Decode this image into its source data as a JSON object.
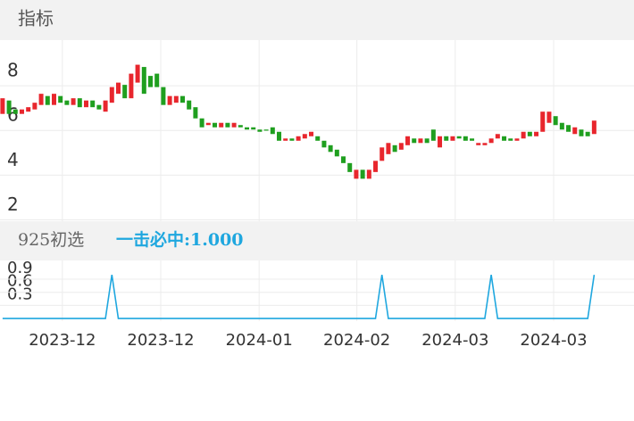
{
  "header": {
    "title": "指标"
  },
  "chart_data": [
    {
      "type": "candlestick",
      "open": [
        6.1,
        6.7,
        6.3,
        6.1,
        6.2,
        6.3,
        6.5,
        6.9,
        6.5,
        6.9,
        6.7,
        6.5,
        6.8,
        6.4,
        6.7,
        6.5,
        6.2,
        6.6,
        7.0,
        7.4,
        6.8,
        7.5,
        8.2,
        7.8,
        7.9,
        7.3,
        6.5,
        6.6,
        6.9,
        6.7,
        6.4,
        5.9,
        5.6,
        5.7,
        5.5,
        5.7,
        5.5,
        5.6,
        5.5,
        5.5,
        5.4,
        5.4,
        5.5,
        5.3,
        4.9,
        5.0,
        4.9,
        5.0,
        5.1,
        5.1,
        4.9,
        4.7,
        4.5,
        4.2,
        3.9,
        3.2,
        3.6,
        3.2,
        3.5,
        4.0,
        4.3,
        4.7,
        4.5,
        4.7,
        5.0,
        4.8,
        5.0,
        5.4,
        4.6,
        5.1,
        4.9,
        5.1,
        5.1,
        5.0,
        4.7,
        4.7,
        4.8,
        5.0,
        5.1,
        5.0,
        4.9,
        5.0,
        5.3,
        5.1,
        5.3,
        5.7,
        6.0,
        5.7,
        5.6,
        5.2,
        5.4,
        5.3,
        5.2
      ],
      "close": [
        6.8,
        6.1,
        6.1,
        6.3,
        6.4,
        6.6,
        7.0,
        6.5,
        7.0,
        6.6,
        6.5,
        6.8,
        6.4,
        6.7,
        6.4,
        6.3,
        6.7,
        7.3,
        7.5,
        6.8,
        7.9,
        8.3,
        7.0,
        7.3,
        7.3,
        6.5,
        6.9,
        6.9,
        6.6,
        6.3,
        5.9,
        5.5,
        5.7,
        5.5,
        5.7,
        5.5,
        5.7,
        5.5,
        5.4,
        5.4,
        5.3,
        5.35,
        5.2,
        4.9,
        5.0,
        4.9,
        5.1,
        5.2,
        5.3,
        4.9,
        4.6,
        4.4,
        4.2,
        3.9,
        3.5,
        3.6,
        3.2,
        3.6,
        4.0,
        4.6,
        4.8,
        4.4,
        4.8,
        5.1,
        4.8,
        5.0,
        4.8,
        4.9,
        5.1,
        4.9,
        5.1,
        5.0,
        4.9,
        4.9,
        4.8,
        4.8,
        5.0,
        5.2,
        4.9,
        4.9,
        5.0,
        5.3,
        5.1,
        5.3,
        6.2,
        6.2,
        5.6,
        5.4,
        5.3,
        5.5,
        5.1,
        5.1,
        5.8
      ],
      "up_color": "#e8262d",
      "down_color": "#1f9f1f",
      "ylim": [
        1.3,
        9.4
      ],
      "yticks": [
        2,
        4,
        6,
        8
      ],
      "xlim": [
        -0.4,
        98.2
      ],
      "xticks": [
        {
          "value": 9.3,
          "label": "2023-12"
        },
        {
          "value": 24.6,
          "label": "2023-12"
        },
        {
          "value": 39.9,
          "label": "2024-01"
        },
        {
          "value": 55.1,
          "label": "2024-02"
        },
        {
          "value": 70.4,
          "label": "2024-03"
        },
        {
          "value": 85.7,
          "label": "2024-03"
        }
      ],
      "grid": true
    },
    {
      "type": "line",
      "title": "925初选",
      "subtitle": "一击必中:1.000",
      "color": "#1fa7df",
      "values": [
        0,
        0,
        0,
        0,
        0,
        0,
        0,
        0,
        0,
        0,
        0,
        0,
        0,
        0,
        0,
        0,
        0,
        1,
        0,
        0,
        0,
        0,
        0,
        0,
        0,
        0,
        0,
        0,
        0,
        0,
        0,
        0,
        0,
        0,
        0,
        0,
        0,
        0,
        0,
        0,
        0,
        0,
        0,
        0,
        0,
        0,
        0,
        0,
        0,
        0,
        0,
        0,
        0,
        0,
        0,
        0,
        0,
        0,
        0,
        1,
        0,
        0,
        0,
        0,
        0,
        0,
        0,
        0,
        0,
        0,
        0,
        0,
        0,
        0,
        0,
        0,
        1,
        0,
        0,
        0,
        0,
        0,
        0,
        0,
        0,
        0,
        0,
        0,
        0,
        0,
        0,
        0,
        1
      ],
      "ylim": [
        -0.06,
        1.33
      ],
      "yticks": [
        0.3,
        0.6,
        0.9
      ],
      "xlim": [
        -0.4,
        98.2
      ],
      "grid": true
    }
  ]
}
